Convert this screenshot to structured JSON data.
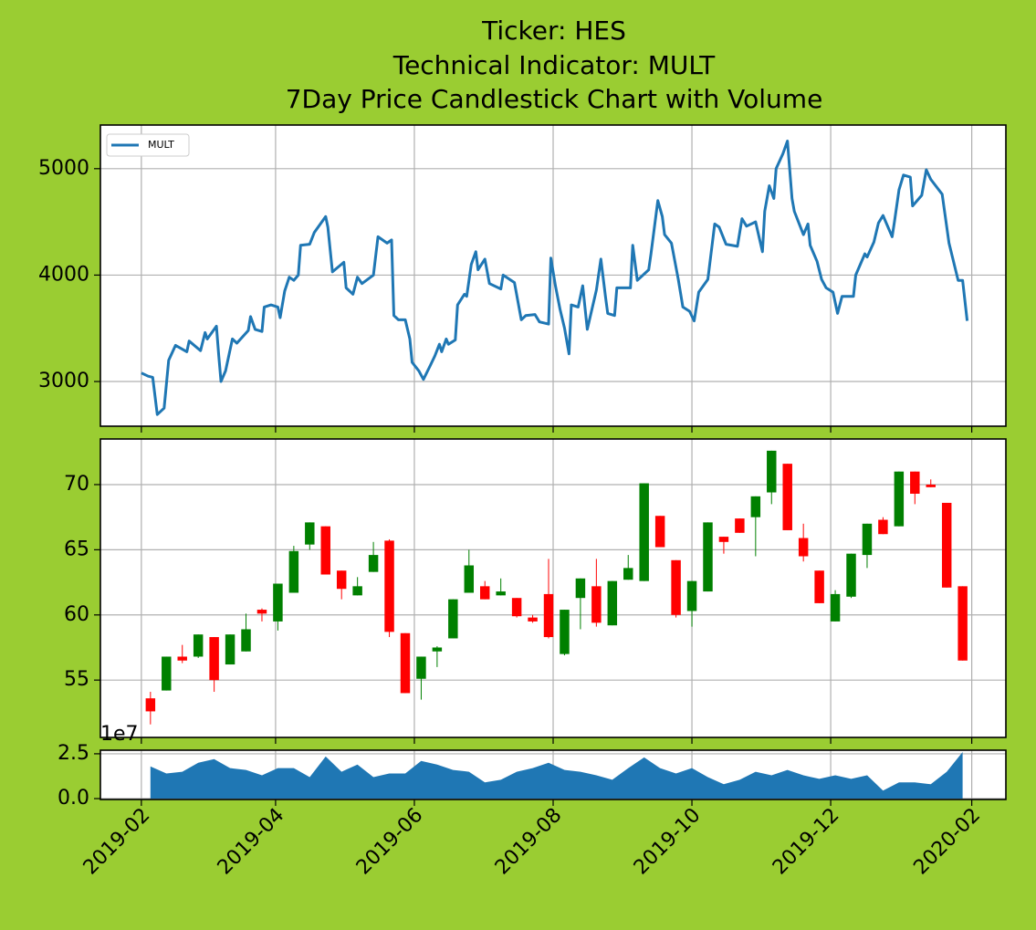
{
  "title": [
    "Ticker: HES",
    "Technical Indicator: MULT",
    "7Day Price Candlestick Chart with Volume"
  ],
  "chart_data": [
    {
      "type": "line",
      "legend": "upper left",
      "grid": true,
      "x": [
        "2019-02-01",
        "2019-02-04",
        "2019-02-06",
        "2019-02-08",
        "2019-02-11",
        "2019-02-13",
        "2019-02-16",
        "2019-02-21",
        "2019-02-22",
        "2019-02-27",
        "2019-03-01",
        "2019-03-02",
        "2019-03-06",
        "2019-03-07",
        "2019-03-08",
        "2019-03-10",
        "2019-03-13",
        "2019-03-15",
        "2019-03-20",
        "2019-03-21",
        "2019-03-23",
        "2019-03-26",
        "2019-03-27",
        "2019-03-30",
        "2019-04-02",
        "2019-04-03",
        "2019-04-05",
        "2019-04-07",
        "2019-04-09",
        "2019-04-11",
        "2019-04-12",
        "2019-04-16",
        "2019-04-18",
        "2019-04-23",
        "2019-04-24",
        "2019-04-26",
        "2019-05-01",
        "2019-05-02",
        "2019-05-05",
        "2019-05-07",
        "2019-05-09",
        "2019-05-14",
        "2019-05-16",
        "2019-05-20",
        "2019-05-22",
        "2019-05-23",
        "2019-05-25",
        "2019-05-28",
        "2019-05-30",
        "2019-05-31",
        "2019-06-03",
        "2019-06-05",
        "2019-06-08",
        "2019-06-10",
        "2019-06-12",
        "2019-06-13",
        "2019-06-15",
        "2019-06-16",
        "2019-06-19",
        "2019-06-20",
        "2019-06-23",
        "2019-06-24",
        "2019-06-26",
        "2019-06-28",
        "2019-06-29",
        "2019-07-02",
        "2019-07-04",
        "2019-07-09",
        "2019-07-10",
        "2019-07-15",
        "2019-07-18",
        "2019-07-20",
        "2019-07-24",
        "2019-07-26",
        "2019-07-30",
        "2019-07-31",
        "2019-08-02",
        "2019-08-04",
        "2019-08-06",
        "2019-08-08",
        "2019-08-09",
        "2019-08-12",
        "2019-08-14",
        "2019-08-16",
        "2019-08-20",
        "2019-08-22",
        "2019-08-24",
        "2019-08-25",
        "2019-08-28",
        "2019-08-29",
        "2019-09-04",
        "2019-09-05",
        "2019-09-07",
        "2019-09-12",
        "2019-09-13",
        "2019-09-16",
        "2019-09-18",
        "2019-09-19",
        "2019-09-22",
        "2019-09-25",
        "2019-09-27",
        "2019-09-30",
        "2019-10-02",
        "2019-10-04",
        "2019-10-08",
        "2019-10-11",
        "2019-10-13",
        "2019-10-16",
        "2019-10-21",
        "2019-10-23",
        "2019-10-25",
        "2019-10-29",
        "2019-11-01",
        "2019-11-02",
        "2019-11-04",
        "2019-11-06",
        "2019-11-07",
        "2019-11-10",
        "2019-11-12",
        "2019-11-14",
        "2019-11-15",
        "2019-11-19",
        "2019-11-21",
        "2019-11-22",
        "2019-11-25",
        "2019-11-27",
        "2019-11-29",
        "2019-12-02",
        "2019-12-04",
        "2019-12-06",
        "2019-12-11",
        "2019-12-12",
        "2019-12-16",
        "2019-12-17",
        "2019-12-20",
        "2019-12-22",
        "2019-12-24",
        "2019-12-28",
        "2019-12-29",
        "2019-12-31",
        "2020-01-02",
        "2020-01-05",
        "2020-01-06",
        "2020-01-10",
        "2020-01-12",
        "2020-01-14",
        "2020-01-19",
        "2020-01-22",
        "2020-01-26",
        "2020-01-28",
        "2020-01-30"
      ],
      "series": [
        {
          "name": "MULT",
          "color": "#1f77b4",
          "values": [
            3080,
            3050,
            3040,
            2690,
            2750,
            3200,
            3340,
            3280,
            3380,
            3290,
            3460,
            3400,
            3520,
            3250,
            3000,
            3100,
            3400,
            3360,
            3480,
            3610,
            3490,
            3470,
            3700,
            3720,
            3700,
            3600,
            3850,
            3980,
            3950,
            4000,
            4280,
            4290,
            4400,
            4550,
            4450,
            4030,
            4120,
            3880,
            3820,
            3980,
            3920,
            4000,
            4360,
            4300,
            4330,
            3620,
            3580,
            3580,
            3400,
            3180,
            3100,
            3020,
            3150,
            3240,
            3350,
            3280,
            3400,
            3350,
            3390,
            3720,
            3820,
            3800,
            4100,
            4220,
            4050,
            4150,
            3920,
            3870,
            4000,
            3930,
            3580,
            3620,
            3630,
            3560,
            3540,
            4160,
            3900,
            3680,
            3500,
            3260,
            3720,
            3700,
            3900,
            3490,
            3860,
            4150,
            3800,
            3640,
            3620,
            3880,
            3880,
            4280,
            3950,
            4050,
            4200,
            4700,
            4550,
            4380,
            4300,
            3960,
            3700,
            3660,
            3570,
            3840,
            3960,
            4480,
            4450,
            4290,
            4270,
            4530,
            4460,
            4500,
            4220,
            4600,
            4840,
            4720,
            5000,
            5140,
            5260,
            4720,
            4600,
            4380,
            4480,
            4280,
            4130,
            3960,
            3880,
            3840,
            3640,
            3800,
            3800,
            4000,
            4200,
            4170,
            4310,
            4490,
            4560,
            4360,
            4500,
            4800,
            4940,
            4920,
            4650,
            4750,
            4990,
            4900,
            4760,
            4300,
            3950,
            3950,
            3570
          ]
        }
      ],
      "ylim": [
        2580,
        5410
      ],
      "yticks": [
        3000,
        4000,
        5000
      ]
    },
    {
      "type": "candlestick",
      "grid": true,
      "up_color": "#008000",
      "down_color": "#ff0000",
      "x": [
        "2019-02-05",
        "2019-02-12",
        "2019-02-19",
        "2019-02-26",
        "2019-03-05",
        "2019-03-12",
        "2019-03-19",
        "2019-03-26",
        "2019-04-02",
        "2019-04-09",
        "2019-04-16",
        "2019-04-23",
        "2019-04-30",
        "2019-05-07",
        "2019-05-14",
        "2019-05-21",
        "2019-05-28",
        "2019-06-04",
        "2019-06-11",
        "2019-06-18",
        "2019-06-25",
        "2019-07-02",
        "2019-07-09",
        "2019-07-16",
        "2019-07-23",
        "2019-07-30",
        "2019-08-06",
        "2019-08-13",
        "2019-08-20",
        "2019-08-27",
        "2019-09-03",
        "2019-09-10",
        "2019-09-17",
        "2019-09-24",
        "2019-10-01",
        "2019-10-08",
        "2019-10-15",
        "2019-10-22",
        "2019-10-29",
        "2019-11-05",
        "2019-11-12",
        "2019-11-19",
        "2019-11-26",
        "2019-12-03",
        "2019-12-10",
        "2019-12-17",
        "2019-12-24",
        "2019-12-31",
        "2020-01-07",
        "2020-01-14",
        "2020-01-21",
        "2020-01-28"
      ],
      "open": [
        53.6,
        54.2,
        56.8,
        56.8,
        58.3,
        56.2,
        57.2,
        60.4,
        59.5,
        61.7,
        65.4,
        66.8,
        63.4,
        61.5,
        63.3,
        65.7,
        58.6,
        55.1,
        57.2,
        58.2,
        61.7,
        62.2,
        61.5,
        61.3,
        59.8,
        61.6,
        57.0,
        61.3,
        62.2,
        59.2,
        62.7,
        62.6,
        67.6,
        64.2,
        60.3,
        61.8,
        66.0,
        67.4,
        67.5,
        69.4,
        71.6,
        65.9,
        63.4,
        59.5,
        61.4,
        64.6,
        67.3,
        66.8,
        71.0,
        70.0,
        68.6,
        62.2
      ],
      "high": [
        54.1,
        56.8,
        57.7,
        58.5,
        58.3,
        58.5,
        60.1,
        60.5,
        62.4,
        65.3,
        67.1,
        66.8,
        63.4,
        62.9,
        65.6,
        65.8,
        58.6,
        56.8,
        57.6,
        61.2,
        65.0,
        62.6,
        62.8,
        61.3,
        60.0,
        64.3,
        60.4,
        62.8,
        64.3,
        62.6,
        64.6,
        70.1,
        67.6,
        64.2,
        62.6,
        67.1,
        66.0,
        67.4,
        69.1,
        72.6,
        71.6,
        67.0,
        63.4,
        61.9,
        64.7,
        67.0,
        67.5,
        71.0,
        71.0,
        70.4,
        68.6,
        62.2
      ],
      "low": [
        51.6,
        54.2,
        56.3,
        56.7,
        54.1,
        56.2,
        57.2,
        59.5,
        58.8,
        61.7,
        65.0,
        63.1,
        61.2,
        61.5,
        63.3,
        58.3,
        54.0,
        53.5,
        56.0,
        58.2,
        61.7,
        61.2,
        61.5,
        59.8,
        59.4,
        58.2,
        56.9,
        58.9,
        59.1,
        59.2,
        62.7,
        62.6,
        65.2,
        59.8,
        59.1,
        61.8,
        64.7,
        66.3,
        64.5,
        68.5,
        66.5,
        64.1,
        60.9,
        59.5,
        61.3,
        63.6,
        66.2,
        66.8,
        68.5,
        69.8,
        62.1,
        56.5
      ],
      "close": [
        52.6,
        56.8,
        56.5,
        58.5,
        55.0,
        58.5,
        58.9,
        60.1,
        62.4,
        64.9,
        67.1,
        63.1,
        62.0,
        62.2,
        64.6,
        58.7,
        54.0,
        56.8,
        57.5,
        61.2,
        63.8,
        61.2,
        61.8,
        59.9,
        59.5,
        58.3,
        60.4,
        62.8,
        59.4,
        62.6,
        63.6,
        70.1,
        65.2,
        60.0,
        62.6,
        67.1,
        65.6,
        66.3,
        69.1,
        72.6,
        66.5,
        64.5,
        60.9,
        61.6,
        64.7,
        67.0,
        66.2,
        71.0,
        69.3,
        69.8,
        62.1,
        56.5
      ],
      "ylim": [
        50.6,
        73.5
      ],
      "yticks": [
        55,
        60,
        65,
        70
      ]
    },
    {
      "type": "area",
      "grid": true,
      "color": "#1f77b4",
      "offset_label": "1e7",
      "x": [
        "2019-02-05",
        "2019-02-12",
        "2019-02-19",
        "2019-02-26",
        "2019-03-05",
        "2019-03-12",
        "2019-03-19",
        "2019-03-26",
        "2019-04-02",
        "2019-04-09",
        "2019-04-16",
        "2019-04-23",
        "2019-04-30",
        "2019-05-07",
        "2019-05-14",
        "2019-05-21",
        "2019-05-28",
        "2019-06-04",
        "2019-06-11",
        "2019-06-18",
        "2019-06-25",
        "2019-07-02",
        "2019-07-09",
        "2019-07-16",
        "2019-07-23",
        "2019-07-30",
        "2019-08-06",
        "2019-08-13",
        "2019-08-20",
        "2019-08-27",
        "2019-09-03",
        "2019-09-10",
        "2019-09-17",
        "2019-09-24",
        "2019-10-01",
        "2019-10-08",
        "2019-10-15",
        "2019-10-22",
        "2019-10-29",
        "2019-11-05",
        "2019-11-12",
        "2019-11-19",
        "2019-11-26",
        "2019-12-03",
        "2019-12-10",
        "2019-12-17",
        "2019-12-24",
        "2019-12-31",
        "2020-01-07",
        "2020-01-14",
        "2020-01-21",
        "2020-01-28"
      ],
      "values": [
        1.8,
        1.4,
        1.5,
        2.0,
        2.2,
        1.7,
        1.6,
        1.3,
        1.7,
        1.7,
        1.2,
        2.35,
        1.5,
        1.9,
        1.2,
        1.4,
        1.4,
        2.1,
        1.9,
        1.6,
        1.5,
        0.9,
        1.05,
        1.5,
        1.7,
        2.0,
        1.6,
        1.5,
        1.3,
        1.05,
        1.7,
        2.3,
        1.7,
        1.4,
        1.7,
        1.2,
        0.8,
        1.05,
        1.5,
        1.3,
        1.6,
        1.3,
        1.1,
        1.3,
        1.1,
        1.3,
        0.45,
        0.9,
        0.9,
        0.8,
        1.5,
        2.6
      ],
      "ylim": [
        -0.05,
        2.7
      ],
      "yticks": [
        {
          "value": 0,
          "label": "0.0"
        },
        2.5
      ],
      "xlim": [
        "2019-01-14",
        "2020-02-16"
      ],
      "xticks": [
        "2019-02",
        "2019-04",
        "2019-06",
        "2019-08",
        "2019-10",
        "2019-12",
        "2020-02"
      ]
    }
  ]
}
